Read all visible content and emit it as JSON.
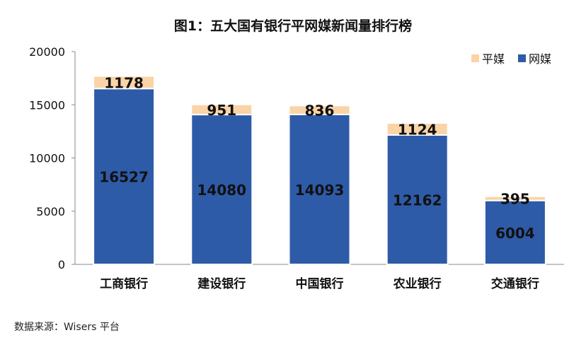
{
  "chart_data": {
    "type": "bar",
    "stacked": true,
    "title": "图1：五大国有银行平网媒新闻量排行榜",
    "categories": [
      "工商银行",
      "建设银行",
      "中国银行",
      "农业银行",
      "交通银行"
    ],
    "series": [
      {
        "name": "网媒",
        "values": [
          16527,
          14080,
          14093,
          12162,
          6004
        ],
        "color": "#2E5BA8"
      },
      {
        "name": "平媒",
        "values": [
          1178,
          951,
          836,
          1124,
          395
        ],
        "color": "#FAD4A6"
      }
    ],
    "ylim": [
      0,
      20000
    ],
    "yticks": [
      0,
      5000,
      10000,
      15000,
      20000
    ],
    "legend": "top-right",
    "grid": false
  },
  "source": "数据来源：Wisers 平台"
}
